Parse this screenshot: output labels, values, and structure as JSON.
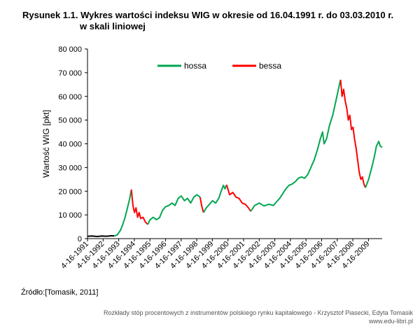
{
  "header": {
    "title_line1": "Rysunek 1.1. Wykres wartości indeksu WIG w okresie od 16.04.1991 r. do 03.03.2010 r.",
    "title_line2": "w skali liniowej"
  },
  "source": "Źródło:[Tomasik, 2011]",
  "footer": {
    "line1": "Rozkłady stóp procentowych z instrumentów polskiego rynku kapitałowego - Krzysztof Piasecki, Edyta Tomasik",
    "line2": "www.edu-libri.pl"
  },
  "chart_data": {
    "type": "line",
    "ylabel": "Wartość WIG [pkt]",
    "ylim": [
      0,
      80000
    ],
    "yticks": [
      "0",
      "10 000",
      "20 000",
      "30 000",
      "40 000",
      "50 000",
      "60 000",
      "70 000",
      "80 000"
    ],
    "xticks": [
      "4-16-1991",
      "4-16-1992",
      "4-16-1993",
      "4-16-1994",
      "4-16-1995",
      "4-16-1996",
      "4-16-1997",
      "4-16-1998",
      "4-16-1999",
      "4-16-2000",
      "4-16-2001",
      "4-16-2002",
      "4-16-2003",
      "4-16-2004",
      "4-16-2005",
      "4-16-2006",
      "4-16-2007",
      "4-16-2008",
      "4-16-2009"
    ],
    "xlim": [
      1991.29,
      2010.17
    ],
    "legend_position": "top",
    "colors": {
      "hossa": "#00a650",
      "bessa": "#ff0000",
      "start": "#000000",
      "axis": "#000000"
    },
    "series": [
      {
        "name": "",
        "color_key": "start",
        "points": [
          [
            1991.29,
            1000
          ],
          [
            1991.6,
            1100
          ],
          [
            1991.9,
            900
          ],
          [
            1992.2,
            1100
          ],
          [
            1992.5,
            1000
          ],
          [
            1992.85,
            1200
          ],
          [
            1993.0,
            1100
          ]
        ]
      },
      {
        "name": "hossa",
        "color_key": "hossa",
        "points": [
          [
            1993.0,
            1100
          ],
          [
            1993.2,
            1600
          ],
          [
            1993.4,
            3500
          ],
          [
            1993.55,
            6000
          ],
          [
            1993.7,
            9000
          ],
          [
            1993.85,
            13000
          ],
          [
            1994.0,
            17000
          ],
          [
            1994.1,
            20700
          ]
        ]
      },
      {
        "name": "bessa",
        "color_key": "bessa",
        "points": [
          [
            1994.1,
            20700
          ],
          [
            1994.2,
            14000
          ],
          [
            1994.3,
            11000
          ],
          [
            1994.4,
            13000
          ],
          [
            1994.5,
            9000
          ],
          [
            1994.6,
            11000
          ],
          [
            1994.7,
            8500
          ],
          [
            1994.85,
            9000
          ],
          [
            1995.0,
            7000
          ],
          [
            1995.15,
            6000
          ]
        ]
      },
      {
        "name": "hossa",
        "color_key": "hossa",
        "points": [
          [
            1995.15,
            6000
          ],
          [
            1995.3,
            8000
          ],
          [
            1995.5,
            9000
          ],
          [
            1995.7,
            8000
          ],
          [
            1995.9,
            8800
          ],
          [
            1996.1,
            12000
          ],
          [
            1996.3,
            13500
          ],
          [
            1996.5,
            14000
          ],
          [
            1996.7,
            15000
          ],
          [
            1996.9,
            14000
          ],
          [
            1997.1,
            17000
          ],
          [
            1997.3,
            18000
          ],
          [
            1997.5,
            16000
          ],
          [
            1997.7,
            17000
          ],
          [
            1997.9,
            15000
          ],
          [
            1998.1,
            17500
          ],
          [
            1998.3,
            18500
          ],
          [
            1998.5,
            17500
          ]
        ]
      },
      {
        "name": "bessa",
        "color_key": "bessa",
        "points": [
          [
            1998.5,
            17500
          ],
          [
            1998.62,
            13500
          ],
          [
            1998.72,
            11000
          ]
        ]
      },
      {
        "name": "hossa",
        "color_key": "hossa",
        "points": [
          [
            1998.72,
            11000
          ],
          [
            1998.9,
            13000
          ],
          [
            1999.1,
            14500
          ],
          [
            1999.3,
            16000
          ],
          [
            1999.5,
            15000
          ],
          [
            1999.7,
            17000
          ],
          [
            1999.85,
            20000
          ],
          [
            2000.0,
            22500
          ],
          [
            2000.1,
            21000
          ],
          [
            2000.2,
            22700
          ]
        ]
      },
      {
        "name": "bessa",
        "color_key": "bessa",
        "points": [
          [
            2000.2,
            22700
          ],
          [
            2000.4,
            18500
          ],
          [
            2000.6,
            19500
          ],
          [
            2000.8,
            17500
          ],
          [
            2001.0,
            17000
          ],
          [
            2001.2,
            15000
          ],
          [
            2001.4,
            14500
          ],
          [
            2001.6,
            13000
          ],
          [
            2001.75,
            11500
          ]
        ]
      },
      {
        "name": "hossa",
        "color_key": "hossa",
        "points": [
          [
            2001.75,
            11500
          ],
          [
            2002.0,
            14000
          ],
          [
            2002.3,
            15000
          ],
          [
            2002.6,
            13800
          ],
          [
            2002.9,
            14500
          ],
          [
            2003.2,
            14000
          ],
          [
            2003.4,
            15500
          ],
          [
            2003.6,
            17000
          ],
          [
            2003.8,
            19000
          ],
          [
            2004.0,
            21000
          ],
          [
            2004.2,
            22500
          ],
          [
            2004.4,
            23000
          ],
          [
            2004.6,
            24000
          ],
          [
            2004.8,
            25500
          ],
          [
            2005.0,
            26000
          ],
          [
            2005.2,
            25500
          ],
          [
            2005.4,
            27000
          ],
          [
            2005.6,
            30000
          ],
          [
            2005.8,
            33000
          ],
          [
            2006.0,
            37000
          ],
          [
            2006.2,
            42000
          ],
          [
            2006.35,
            45000
          ],
          [
            2006.45,
            40000
          ],
          [
            2006.6,
            42000
          ],
          [
            2006.8,
            48000
          ],
          [
            2007.0,
            52000
          ],
          [
            2007.2,
            58000
          ],
          [
            2007.4,
            64000
          ],
          [
            2007.5,
            67000
          ]
        ]
      },
      {
        "name": "bessa",
        "color_key": "bessa",
        "points": [
          [
            2007.5,
            67000
          ],
          [
            2007.6,
            60000
          ],
          [
            2007.7,
            63000
          ],
          [
            2007.8,
            58000
          ],
          [
            2007.9,
            55000
          ],
          [
            2008.0,
            50000
          ],
          [
            2008.1,
            52000
          ],
          [
            2008.2,
            46000
          ],
          [
            2008.3,
            47000
          ],
          [
            2008.4,
            42000
          ],
          [
            2008.5,
            38000
          ],
          [
            2008.6,
            33000
          ],
          [
            2008.7,
            28000
          ],
          [
            2008.8,
            25000
          ],
          [
            2008.9,
            26000
          ],
          [
            2009.0,
            23000
          ],
          [
            2009.1,
            21500
          ]
        ]
      },
      {
        "name": "hossa",
        "color_key": "hossa",
        "points": [
          [
            2009.1,
            21500
          ],
          [
            2009.3,
            25000
          ],
          [
            2009.5,
            30000
          ],
          [
            2009.65,
            34000
          ],
          [
            2009.8,
            39000
          ],
          [
            2009.95,
            41000
          ],
          [
            2010.05,
            39000
          ],
          [
            2010.17,
            38500
          ]
        ]
      }
    ]
  }
}
